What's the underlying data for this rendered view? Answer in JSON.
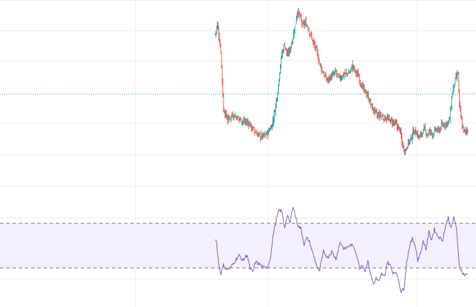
{
  "chart_data": [
    {
      "type": "candlestick",
      "title": "",
      "xlabel": "",
      "ylabel": "",
      "grid": true,
      "legend": "none",
      "ylim": [
        0,
        100
      ],
      "reference_line": 43.5,
      "colors": {
        "up": "#26a69a",
        "down": "#ef5350",
        "reference": "#26a69a",
        "grid": "#eeeeee"
      },
      "close_path": [
        [
          0,
          80
        ],
        [
          3,
          86
        ],
        [
          8,
          70
        ],
        [
          12,
          34
        ],
        [
          18,
          28
        ],
        [
          25,
          31
        ],
        [
          33,
          29
        ],
        [
          40,
          27
        ],
        [
          48,
          26
        ],
        [
          56,
          21
        ],
        [
          64,
          18
        ],
        [
          70,
          18
        ],
        [
          76,
          20
        ],
        [
          82,
          25
        ],
        [
          86,
          34
        ],
        [
          90,
          45
        ],
        [
          93,
          58
        ],
        [
          96,
          68
        ],
        [
          100,
          74
        ],
        [
          104,
          67
        ],
        [
          108,
          71
        ],
        [
          112,
          78
        ],
        [
          116,
          87
        ],
        [
          118,
          94
        ],
        [
          122,
          91
        ],
        [
          126,
          85
        ],
        [
          130,
          87
        ],
        [
          134,
          84
        ],
        [
          138,
          79
        ],
        [
          142,
          74
        ],
        [
          146,
          70
        ],
        [
          150,
          63
        ],
        [
          154,
          58
        ],
        [
          158,
          54
        ],
        [
          162,
          52
        ],
        [
          166,
          54
        ],
        [
          170,
          55
        ],
        [
          174,
          57
        ],
        [
          178,
          53
        ],
        [
          182,
          54
        ],
        [
          186,
          56
        ],
        [
          190,
          56
        ],
        [
          194,
          57
        ],
        [
          198,
          61
        ],
        [
          202,
          57
        ],
        [
          206,
          55
        ],
        [
          210,
          50
        ],
        [
          214,
          46
        ],
        [
          218,
          44
        ],
        [
          222,
          40
        ],
        [
          226,
          35
        ],
        [
          230,
          33
        ],
        [
          234,
          30
        ],
        [
          238,
          31
        ],
        [
          242,
          29
        ],
        [
          246,
          29
        ],
        [
          250,
          28
        ],
        [
          254,
          27
        ],
        [
          258,
          26
        ],
        [
          262,
          24
        ],
        [
          266,
          22
        ],
        [
          270,
          12
        ],
        [
          274,
          9
        ],
        [
          278,
          14
        ],
        [
          282,
          16
        ],
        [
          286,
          21
        ],
        [
          290,
          20
        ],
        [
          294,
          17
        ],
        [
          298,
          20
        ],
        [
          302,
          22
        ],
        [
          306,
          19
        ],
        [
          310,
          21
        ],
        [
          314,
          19
        ],
        [
          318,
          22
        ],
        [
          322,
          21
        ],
        [
          326,
          24
        ],
        [
          330,
          25
        ],
        [
          334,
          26
        ],
        [
          338,
          28
        ],
        [
          342,
          45
        ],
        [
          346,
          52
        ],
        [
          350,
          56
        ],
        [
          352,
          36
        ],
        [
          356,
          24
        ],
        [
          360,
          20
        ],
        [
          364,
          22
        ]
      ]
    },
    {
      "type": "line",
      "title": "",
      "xlabel": "",
      "ylabel": "",
      "grid": true,
      "legend": "none",
      "ylim": [
        0,
        100
      ],
      "band": [
        20,
        80
      ],
      "colors": {
        "line": "#7e57c2",
        "band": "#f3effc",
        "band_edge": "#787b86"
      },
      "values_path": [
        [
          0,
          60
        ],
        [
          2,
          54
        ],
        [
          5,
          25
        ],
        [
          8,
          12
        ],
        [
          12,
          24
        ],
        [
          16,
          18
        ],
        [
          22,
          20
        ],
        [
          28,
          29
        ],
        [
          34,
          37
        ],
        [
          40,
          30
        ],
        [
          46,
          38
        ],
        [
          50,
          19
        ],
        [
          54,
          14
        ],
        [
          58,
          28
        ],
        [
          64,
          25
        ],
        [
          70,
          20
        ],
        [
          76,
          22
        ],
        [
          80,
          36
        ],
        [
          84,
          68
        ],
        [
          88,
          84
        ],
        [
          92,
          98
        ],
        [
          96,
          96
        ],
        [
          100,
          75
        ],
        [
          104,
          90
        ],
        [
          108,
          80
        ],
        [
          112,
          104
        ],
        [
          116,
          88
        ],
        [
          120,
          76
        ],
        [
          124,
          72
        ],
        [
          128,
          52
        ],
        [
          132,
          60
        ],
        [
          136,
          55
        ],
        [
          140,
          42
        ],
        [
          146,
          24
        ],
        [
          150,
          14
        ],
        [
          156,
          42
        ],
        [
          162,
          34
        ],
        [
          168,
          42
        ],
        [
          174,
          32
        ],
        [
          180,
          55
        ],
        [
          186,
          45
        ],
        [
          190,
          48
        ],
        [
          196,
          51
        ],
        [
          200,
          48
        ],
        [
          204,
          38
        ],
        [
          208,
          20
        ],
        [
          212,
          25
        ],
        [
          216,
          16
        ],
        [
          220,
          30
        ],
        [
          224,
          12
        ],
        [
          228,
          -2
        ],
        [
          232,
          6
        ],
        [
          236,
          1
        ],
        [
          240,
          12
        ],
        [
          244,
          8
        ],
        [
          248,
          28
        ],
        [
          252,
          24
        ],
        [
          256,
          14
        ],
        [
          260,
          15
        ],
        [
          264,
          5
        ],
        [
          268,
          -12
        ],
        [
          272,
          -8
        ],
        [
          276,
          28
        ],
        [
          280,
          48
        ],
        [
          284,
          59
        ],
        [
          288,
          52
        ],
        [
          292,
          30
        ],
        [
          296,
          40
        ],
        [
          300,
          56
        ],
        [
          304,
          45
        ],
        [
          308,
          68
        ],
        [
          312,
          58
        ],
        [
          316,
          72
        ],
        [
          320,
          64
        ],
        [
          324,
          60
        ],
        [
          328,
          58
        ],
        [
          332,
          76
        ],
        [
          336,
          88
        ],
        [
          340,
          72
        ],
        [
          344,
          89
        ],
        [
          348,
          70
        ],
        [
          352,
          23
        ],
        [
          356,
          14
        ],
        [
          360,
          10
        ],
        [
          364,
          12
        ]
      ]
    }
  ]
}
